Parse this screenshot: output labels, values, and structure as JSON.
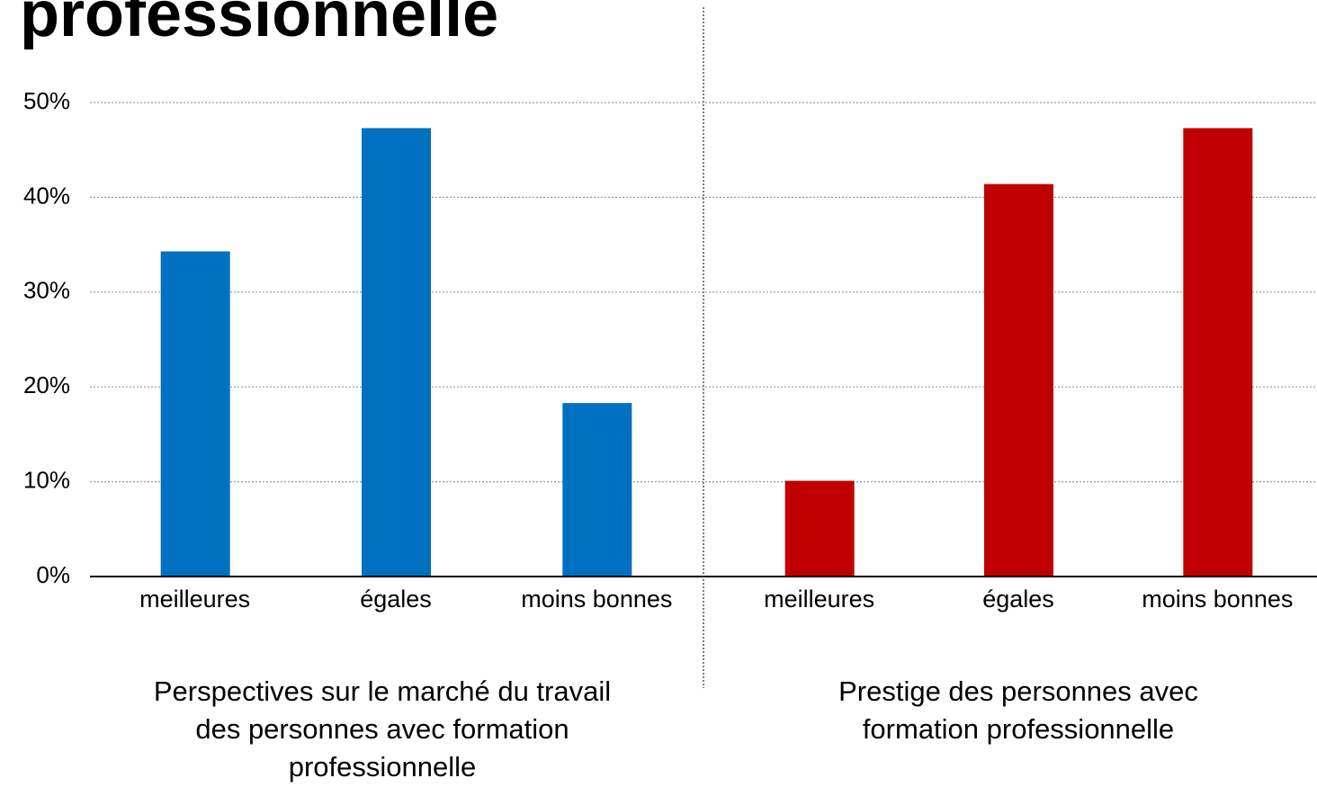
{
  "title": "professionnelle",
  "chart_data": [
    {
      "type": "bar",
      "categories": [
        "meilleures",
        "égales",
        "moins bonnes"
      ],
      "values": [
        34.3,
        47.3,
        18.3
      ],
      "color": "#0070c0",
      "xlabel": [
        "Perspectives sur le marché du travail",
        "des personnes avec formation",
        "professionnelle"
      ],
      "ylim": [
        0,
        50
      ],
      "yticks": [
        {
          "value": 0,
          "label": "0%"
        },
        {
          "value": 10,
          "label": "10%"
        },
        {
          "value": 20,
          "label": "20%"
        },
        {
          "value": 30,
          "label": "30%"
        },
        {
          "value": 40,
          "label": "40%"
        },
        {
          "value": 50,
          "label": "50%"
        }
      ],
      "grid": true
    },
    {
      "type": "bar",
      "categories": [
        "meilleures",
        "égales",
        "moins bonnes"
      ],
      "values": [
        10.1,
        41.4,
        47.3
      ],
      "color": "#c00000",
      "xlabel": [
        "Prestige des personnes avec",
        "formation professionnelle"
      ],
      "ylim": [
        0,
        50
      ]
    }
  ]
}
